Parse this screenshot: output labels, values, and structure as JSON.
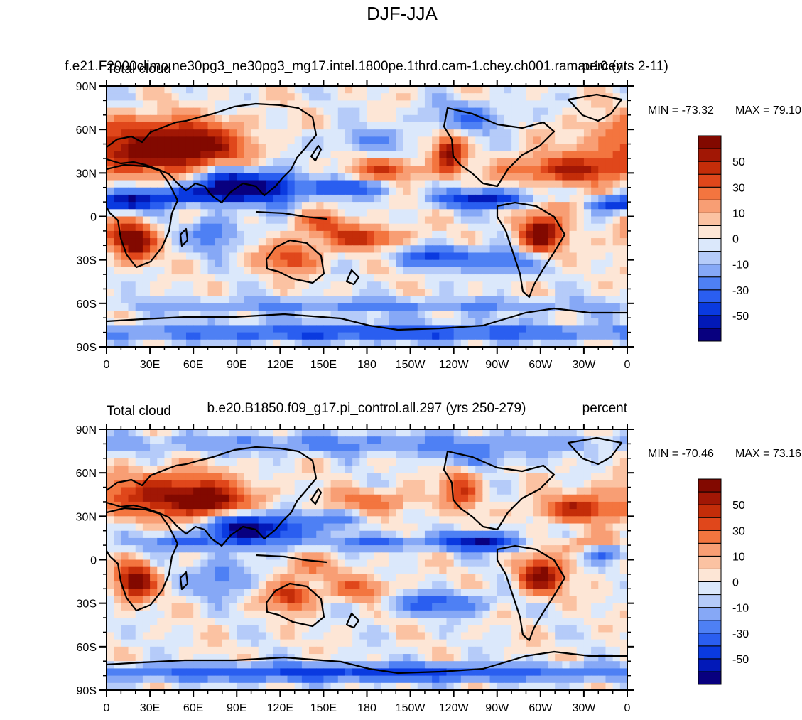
{
  "figure": {
    "title": "DJF-JJA"
  },
  "colorbar": {
    "levels": [
      -60,
      -50,
      -40,
      -30,
      -20,
      -10,
      -5,
      0,
      5,
      10,
      20,
      30,
      40,
      50,
      60
    ],
    "colors": [
      "#08007f",
      "#0219b8",
      "#0a3ae0",
      "#2a5ef0",
      "#4e80f4",
      "#86a8f6",
      "#b5cbf9",
      "#dbe8fb",
      "#fde6d6",
      "#fbc2a2",
      "#f89e74",
      "#f3753f",
      "#e0471b",
      "#c42d09",
      "#a11705",
      "#820900"
    ],
    "tick_labels": [
      "50",
      "30",
      "10",
      "0",
      "-10",
      "-30",
      "-50"
    ],
    "tick_values": [
      50,
      30,
      10,
      0,
      -10,
      -30,
      -50
    ]
  },
  "chart_data": [
    {
      "type": "heatmap",
      "variable": "Total cloud",
      "units": "percent",
      "case": "f.e21.F2000climo.ne30pg3_ne30pg3_mg17.intel.1800pe.1thrd.cam-1.chey.ch001.ramau10 (yrs 2-11)",
      "min_text": "MIN = -73.32",
      "max_text": "MAX =  79.10",
      "min": -73.32,
      "max": 79.1,
      "xlim": [
        0,
        360
      ],
      "ylim": [
        -90,
        90
      ],
      "x_ticks": [
        "0",
        "30E",
        "60E",
        "90E",
        "120E",
        "150E",
        "180",
        "150W",
        "120W",
        "90W",
        "60W",
        "30W",
        "0"
      ],
      "y_ticks": [
        "90N",
        "60N",
        "30N",
        "0",
        "30S",
        "60S",
        "90S"
      ],
      "features": [
        {
          "lon": 30,
          "lat": 45,
          "v": 62,
          "sx": 45,
          "sy": 14
        },
        {
          "lon": 65,
          "lat": 48,
          "v": 40,
          "sx": 30,
          "sy": 12
        },
        {
          "lon": 30,
          "lat": 62,
          "v": 22,
          "sx": 55,
          "sy": 10
        },
        {
          "lon": 20,
          "lat": -18,
          "v": 72,
          "sx": 12,
          "sy": 12
        },
        {
          "lon": 5,
          "lat": -12,
          "v": 28,
          "sx": 14,
          "sy": 10
        },
        {
          "lon": 128,
          "lat": -28,
          "v": 40,
          "sx": 18,
          "sy": 10
        },
        {
          "lon": 178,
          "lat": -15,
          "v": 45,
          "sx": 25,
          "sy": 7
        },
        {
          "lon": 150,
          "lat": -5,
          "v": 28,
          "sx": 20,
          "sy": 8
        },
        {
          "lon": 237,
          "lat": 43,
          "v": 60,
          "sx": 10,
          "sy": 12
        },
        {
          "lon": 300,
          "lat": -12,
          "v": 72,
          "sx": 14,
          "sy": 12
        },
        {
          "lon": 323,
          "lat": 32,
          "v": 48,
          "sx": 30,
          "sy": 9
        },
        {
          "lon": 285,
          "lat": 33,
          "v": 22,
          "sx": 18,
          "sy": 8
        },
        {
          "lon": 195,
          "lat": 32,
          "v": 35,
          "sx": 25,
          "sy": 7
        },
        {
          "lon": 330,
          "lat": 8,
          "v": 25,
          "sx": 25,
          "sy": 6
        },
        {
          "lon": 90,
          "lat": 22,
          "v": -70,
          "sx": 25,
          "sy": 10
        },
        {
          "lon": 60,
          "lat": 15,
          "v": -45,
          "sx": 35,
          "sy": 6
        },
        {
          "lon": 15,
          "lat": 10,
          "v": -55,
          "sx": 25,
          "sy": 6
        },
        {
          "lon": 120,
          "lat": 18,
          "v": -42,
          "sx": 15,
          "sy": 12
        },
        {
          "lon": 165,
          "lat": 20,
          "v": -45,
          "sx": 25,
          "sy": 6
        },
        {
          "lon": 260,
          "lat": 12,
          "v": -58,
          "sx": 30,
          "sy": 6
        },
        {
          "lon": 345,
          "lat": 8,
          "v": -50,
          "sx": 18,
          "sy": 5
        },
        {
          "lon": 230,
          "lat": -28,
          "v": -40,
          "sx": 30,
          "sy": 7
        },
        {
          "lon": 75,
          "lat": -12,
          "v": -32,
          "sx": 15,
          "sy": 12
        },
        {
          "lon": 275,
          "lat": -32,
          "v": -35,
          "sx": 20,
          "sy": 8
        },
        {
          "lon": 180,
          "lat": -80,
          "v": -42,
          "sx": 200,
          "sy": 6
        },
        {
          "lon": 180,
          "lat": -62,
          "v": -22,
          "sx": 200,
          "sy": 5
        },
        {
          "lon": 250,
          "lat": 68,
          "v": -25,
          "sx": 30,
          "sy": 10
        },
        {
          "lon": 180,
          "lat": 52,
          "v": -18,
          "sx": 30,
          "sy": 8
        }
      ]
    },
    {
      "type": "heatmap",
      "variable": "Total cloud",
      "units": "percent",
      "case": "b.e20.B1850.f09_g17.pi_control.all.297 (yrs 250-279)",
      "min_text": "MIN = -70.46",
      "max_text": "MAX =  73.16",
      "min": -70.46,
      "max": 73.16,
      "xlim": [
        0,
        360
      ],
      "ylim": [
        -90,
        90
      ],
      "x_ticks": [
        "0",
        "30E",
        "60E",
        "90E",
        "120E",
        "150E",
        "180",
        "150W",
        "120W",
        "90W",
        "60W",
        "30W",
        "0"
      ],
      "y_ticks": [
        "90N",
        "60N",
        "30N",
        "0",
        "30S",
        "60S",
        "90S"
      ],
      "features": [
        {
          "lon": 45,
          "lat": 45,
          "v": 58,
          "sx": 45,
          "sy": 14
        },
        {
          "lon": 70,
          "lat": 40,
          "v": 50,
          "sx": 20,
          "sy": 8
        },
        {
          "lon": 20,
          "lat": -15,
          "v": 70,
          "sx": 12,
          "sy": 12
        },
        {
          "lon": 128,
          "lat": -25,
          "v": 48,
          "sx": 15,
          "sy": 9
        },
        {
          "lon": 300,
          "lat": -12,
          "v": 70,
          "sx": 14,
          "sy": 11
        },
        {
          "lon": 325,
          "lat": 35,
          "v": 45,
          "sx": 28,
          "sy": 8
        },
        {
          "lon": 245,
          "lat": 50,
          "v": 38,
          "sx": 12,
          "sy": 14
        },
        {
          "lon": 185,
          "lat": 40,
          "v": 25,
          "sx": 30,
          "sy": 8
        },
        {
          "lon": 140,
          "lat": -5,
          "v": 20,
          "sx": 20,
          "sy": 8
        },
        {
          "lon": 175,
          "lat": -20,
          "v": 28,
          "sx": 20,
          "sy": 8
        },
        {
          "lon": 330,
          "lat": 10,
          "v": 20,
          "sx": 25,
          "sy": 6
        },
        {
          "lon": 95,
          "lat": 22,
          "v": -65,
          "sx": 22,
          "sy": 10
        },
        {
          "lon": 125,
          "lat": 20,
          "v": -40,
          "sx": 18,
          "sy": 10
        },
        {
          "lon": 55,
          "lat": 12,
          "v": -35,
          "sx": 30,
          "sy": 6
        },
        {
          "lon": 260,
          "lat": 12,
          "v": -62,
          "sx": 25,
          "sy": 6
        },
        {
          "lon": 190,
          "lat": 12,
          "v": -30,
          "sx": 40,
          "sy": 5
        },
        {
          "lon": 160,
          "lat": 28,
          "v": -25,
          "sx": 20,
          "sy": 6
        },
        {
          "lon": 230,
          "lat": -30,
          "v": -35,
          "sx": 35,
          "sy": 7
        },
        {
          "lon": 80,
          "lat": -12,
          "v": -28,
          "sx": 18,
          "sy": 12
        },
        {
          "lon": 180,
          "lat": -78,
          "v": -45,
          "sx": 200,
          "sy": 6
        },
        {
          "lon": 180,
          "lat": 80,
          "v": -22,
          "sx": 200,
          "sy": 7
        },
        {
          "lon": 255,
          "lat": 70,
          "v": -20,
          "sx": 30,
          "sy": 8
        },
        {
          "lon": 345,
          "lat": 5,
          "v": -35,
          "sx": 15,
          "sy": 5
        }
      ]
    }
  ]
}
